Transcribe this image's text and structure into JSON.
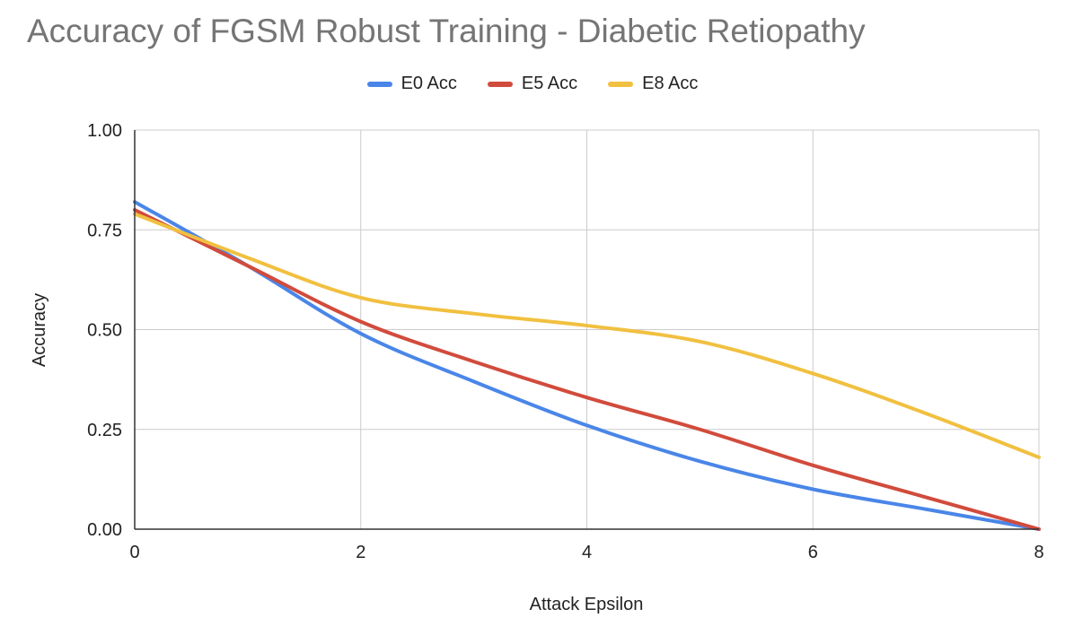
{
  "chart_data": {
    "type": "line",
    "title": "Accuracy of FGSM Robust Training - Diabetic Retiopathy",
    "xlabel": "Attack Epsilon",
    "ylabel": "Accuracy",
    "xlim": [
      0,
      8
    ],
    "ylim": [
      0,
      1
    ],
    "x_ticks": [
      "0",
      "2",
      "4",
      "6",
      "8"
    ],
    "y_ticks": [
      "0.00",
      "0.25",
      "0.50",
      "0.75",
      "1.00"
    ],
    "grid": true,
    "legend_position": "top",
    "x": [
      0,
      1,
      2,
      3,
      4,
      5,
      6,
      7,
      8
    ],
    "series": [
      {
        "name": "E0 Acc",
        "color": "#4a86e8",
        "values": [
          0.82,
          0.66,
          0.49,
          0.37,
          0.26,
          0.17,
          0.1,
          0.05,
          0.0
        ]
      },
      {
        "name": "E5 Acc",
        "color": "#d14b3c",
        "values": [
          0.8,
          0.66,
          0.52,
          0.42,
          0.33,
          0.25,
          0.16,
          0.08,
          0.0
        ]
      },
      {
        "name": "E8 Acc",
        "color": "#f1c040",
        "values": [
          0.79,
          0.68,
          0.58,
          0.54,
          0.51,
          0.47,
          0.39,
          0.29,
          0.18
        ]
      }
    ]
  }
}
